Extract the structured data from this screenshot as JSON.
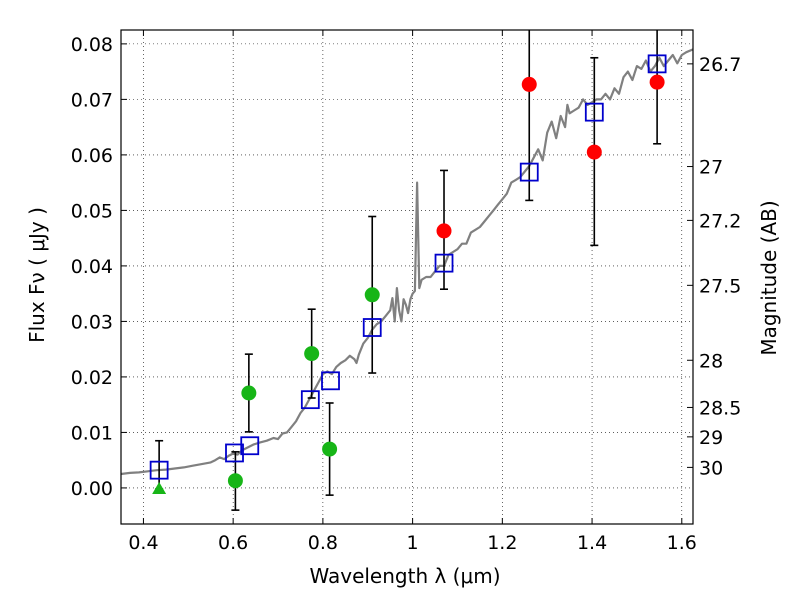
{
  "chart_data": {
    "type": "scatter",
    "xlabel": "Wavelength  λ (μm)",
    "ylabel": "Flux  Fν  ( μJy )",
    "ylabel_right": "Magnitude (AB)",
    "xlim": [
      0.35,
      1.625
    ],
    "ylim": [
      -0.0065,
      0.0825
    ],
    "x_ticks": [
      0.4,
      0.6,
      0.8,
      1.0,
      1.2,
      1.4,
      1.6
    ],
    "x_tick_labels": [
      "0.4",
      "0.6",
      "0.8",
      "1",
      "1.2",
      "1.4",
      "1.6"
    ],
    "y_ticks": [
      0.0,
      0.01,
      0.02,
      0.03,
      0.04,
      0.05,
      0.06,
      0.07,
      0.08
    ],
    "y_tick_labels": [
      "0.00",
      "0.01",
      "0.02",
      "0.03",
      "0.04",
      "0.05",
      "0.06",
      "0.07",
      "0.08"
    ],
    "right_axis_ticks": [
      {
        "label": "26.7",
        "flux": 0.0764
      },
      {
        "label": "27",
        "flux": 0.0579
      },
      {
        "label": "27.2",
        "flux": 0.0482
      },
      {
        "label": "27.5",
        "flux": 0.0365
      },
      {
        "label": "28",
        "flux": 0.023
      },
      {
        "label": "28.5",
        "flux": 0.0145
      },
      {
        "label": "29",
        "flux": 0.0092
      },
      {
        "label": "30",
        "flux": 0.0037
      }
    ],
    "grid": true,
    "colors": {
      "model_line": "#808080",
      "green_points": "#17b517",
      "red_points": "#ff0000",
      "model_boxes": "#0000cc",
      "error_bars": "#000000"
    },
    "series": [
      {
        "type": "line",
        "points": [
          [
            0.35,
            0.0025
          ],
          [
            0.37,
            0.0027
          ],
          [
            0.39,
            0.0028
          ],
          [
            0.41,
            0.003
          ],
          [
            0.42,
            0.0031
          ],
          [
            0.43,
            0.0032
          ],
          [
            0.45,
            0.0033
          ],
          [
            0.47,
            0.0035
          ],
          [
            0.49,
            0.0037
          ],
          [
            0.51,
            0.004
          ],
          [
            0.53,
            0.0043
          ],
          [
            0.55,
            0.0046
          ],
          [
            0.56,
            0.005
          ],
          [
            0.57,
            0.0055
          ],
          [
            0.58,
            0.0052
          ],
          [
            0.59,
            0.0058
          ],
          [
            0.6,
            0.0062
          ],
          [
            0.61,
            0.006
          ],
          [
            0.62,
            0.0068
          ],
          [
            0.63,
            0.0072
          ],
          [
            0.645,
            0.0078
          ],
          [
            0.66,
            0.0082
          ],
          [
            0.675,
            0.0085
          ],
          [
            0.69,
            0.009
          ],
          [
            0.7,
            0.0088
          ],
          [
            0.71,
            0.0098
          ],
          [
            0.72,
            0.01
          ],
          [
            0.73,
            0.011
          ],
          [
            0.74,
            0.012
          ],
          [
            0.75,
            0.0135
          ],
          [
            0.76,
            0.0145
          ],
          [
            0.77,
            0.016
          ],
          [
            0.78,
            0.0175
          ],
          [
            0.79,
            0.019
          ],
          [
            0.8,
            0.0205
          ],
          [
            0.81,
            0.021
          ],
          [
            0.82,
            0.0205
          ],
          [
            0.83,
            0.0218
          ],
          [
            0.84,
            0.0225
          ],
          [
            0.85,
            0.023
          ],
          [
            0.86,
            0.0238
          ],
          [
            0.87,
            0.0232
          ],
          [
            0.875,
            0.0225
          ],
          [
            0.88,
            0.024
          ],
          [
            0.89,
            0.026
          ],
          [
            0.9,
            0.027
          ],
          [
            0.91,
            0.0285
          ],
          [
            0.92,
            0.0295
          ],
          [
            0.93,
            0.03
          ],
          [
            0.94,
            0.031
          ],
          [
            0.95,
            0.032
          ],
          [
            0.955,
            0.0342
          ],
          [
            0.96,
            0.03
          ],
          [
            0.965,
            0.036
          ],
          [
            0.97,
            0.032
          ],
          [
            0.975,
            0.03
          ],
          [
            0.98,
            0.034
          ],
          [
            0.985,
            0.033
          ],
          [
            0.99,
            0.0315
          ],
          [
            0.995,
            0.034
          ],
          [
            1.0,
            0.035
          ],
          [
            1.005,
            0.0355
          ],
          [
            1.01,
            0.055
          ],
          [
            1.015,
            0.036
          ],
          [
            1.02,
            0.0375
          ],
          [
            1.03,
            0.038
          ],
          [
            1.04,
            0.038
          ],
          [
            1.05,
            0.039
          ],
          [
            1.06,
            0.04
          ],
          [
            1.07,
            0.04
          ],
          [
            1.08,
            0.042
          ],
          [
            1.09,
            0.0425
          ],
          [
            1.1,
            0.043
          ],
          [
            1.11,
            0.044
          ],
          [
            1.12,
            0.044
          ],
          [
            1.13,
            0.046
          ],
          [
            1.14,
            0.0465
          ],
          [
            1.15,
            0.047
          ],
          [
            1.16,
            0.048
          ],
          [
            1.17,
            0.049
          ],
          [
            1.18,
            0.05
          ],
          [
            1.19,
            0.051
          ],
          [
            1.2,
            0.052
          ],
          [
            1.21,
            0.053
          ],
          [
            1.22,
            0.055
          ],
          [
            1.23,
            0.0555
          ],
          [
            1.24,
            0.056
          ],
          [
            1.25,
            0.057
          ],
          [
            1.26,
            0.058
          ],
          [
            1.27,
            0.0595
          ],
          [
            1.28,
            0.061
          ],
          [
            1.29,
            0.059
          ],
          [
            1.3,
            0.064
          ],
          [
            1.31,
            0.066
          ],
          [
            1.32,
            0.063
          ],
          [
            1.33,
            0.067
          ],
          [
            1.34,
            0.065
          ],
          [
            1.345,
            0.069
          ],
          [
            1.35,
            0.0675
          ],
          [
            1.36,
            0.068
          ],
          [
            1.37,
            0.0685
          ],
          [
            1.38,
            0.07
          ],
          [
            1.39,
            0.069
          ],
          [
            1.4,
            0.0695
          ],
          [
            1.41,
            0.07
          ],
          [
            1.42,
            0.07
          ],
          [
            1.43,
            0.071
          ],
          [
            1.44,
            0.07
          ],
          [
            1.45,
            0.072
          ],
          [
            1.46,
            0.071
          ],
          [
            1.47,
            0.074
          ],
          [
            1.48,
            0.075
          ],
          [
            1.49,
            0.0735
          ],
          [
            1.5,
            0.076
          ],
          [
            1.51,
            0.0755
          ],
          [
            1.52,
            0.077
          ],
          [
            1.53,
            0.075
          ],
          [
            1.54,
            0.076
          ],
          [
            1.55,
            0.0775
          ],
          [
            1.56,
            0.076
          ],
          [
            1.57,
            0.077
          ],
          [
            1.58,
            0.078
          ],
          [
            1.59,
            0.0765
          ],
          [
            1.6,
            0.078
          ],
          [
            1.61,
            0.0785
          ],
          [
            1.625,
            0.079
          ]
        ]
      },
      {
        "type": "scatter",
        "points": [
          {
            "x": 0.605,
            "y": 0.0013,
            "yerr_low": -0.004,
            "yerr_high": 0.0065
          },
          {
            "x": 0.635,
            "y": 0.0171,
            "yerr_low": 0.0101,
            "yerr_high": 0.0241
          },
          {
            "x": 0.775,
            "y": 0.0242,
            "yerr_low": 0.0162,
            "yerr_high": 0.0322
          },
          {
            "x": 0.815,
            "y": 0.007,
            "yerr_low": -0.0013,
            "yerr_high": 0.0153
          },
          {
            "x": 0.91,
            "y": 0.0348,
            "yerr_low": 0.0207,
            "yerr_high": 0.0489
          }
        ]
      },
      {
        "type": "scatter",
        "points": [
          {
            "x": 1.07,
            "y": 0.0463,
            "yerr_low": 0.0358,
            "yerr_high": 0.0572
          },
          {
            "x": 1.26,
            "y": 0.0727,
            "yerr_low": 0.0518,
            "yerr_high": 0.083
          },
          {
            "x": 1.405,
            "y": 0.0605,
            "yerr_low": 0.0437,
            "yerr_high": 0.0775
          },
          {
            "x": 1.545,
            "y": 0.0731,
            "yerr_low": 0.062,
            "yerr_high": 0.083
          }
        ]
      },
      {
        "type": "scatter",
        "marker": "triangle",
        "points": [
          {
            "x": 0.435,
            "y": -0.0002,
            "yerr_low": -0.0002,
            "yerr_high": 0.0085
          }
        ]
      },
      {
        "type": "scatter",
        "marker": "open-square",
        "points": [
          {
            "x": 0.435,
            "y": 0.0032
          },
          {
            "x": 0.603,
            "y": 0.0063
          },
          {
            "x": 0.637,
            "y": 0.0076
          },
          {
            "x": 0.772,
            "y": 0.0159
          },
          {
            "x": 0.817,
            "y": 0.0193
          },
          {
            "x": 0.91,
            "y": 0.0289
          },
          {
            "x": 1.07,
            "y": 0.0405
          },
          {
            "x": 1.26,
            "y": 0.0569
          },
          {
            "x": 1.405,
            "y": 0.0677
          },
          {
            "x": 1.545,
            "y": 0.0764
          }
        ]
      }
    ]
  }
}
